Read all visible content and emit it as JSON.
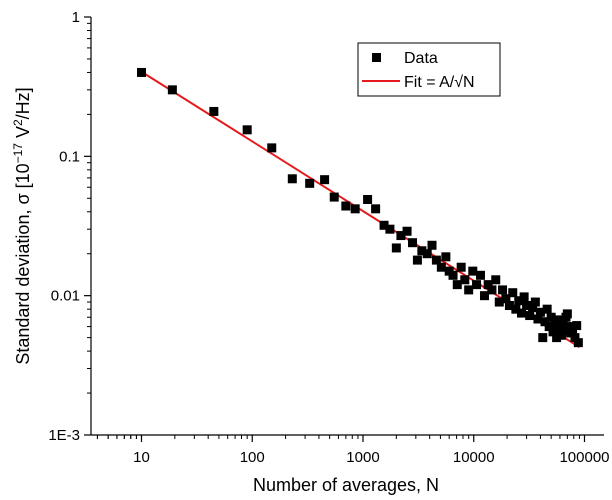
{
  "chart_data": {
    "type": "scatter",
    "title": "",
    "xlabel": "Number of averages, N",
    "ylabel": {
      "pre": "Standard deviation, σ [10",
      "sup1": "−17",
      "mid": " V",
      "sup2": "2",
      "post": "/Hz]"
    },
    "x_scale": "log",
    "y_scale": "log",
    "xlim": [
      3.5,
      150000
    ],
    "ylim": [
      0.001,
      1
    ],
    "x_ticks": [
      {
        "value": 10,
        "label": "10"
      },
      {
        "value": 100,
        "label": "100"
      },
      {
        "value": 1000,
        "label": "1000"
      },
      {
        "value": 10000,
        "label": "10000"
      },
      {
        "value": 100000,
        "label": "100000"
      }
    ],
    "y_ticks": [
      {
        "value": 0.001,
        "label": "1E-3"
      },
      {
        "value": 0.01,
        "label": "0.01"
      },
      {
        "value": 0.1,
        "label": "0.1"
      },
      {
        "value": 1,
        "label": "1"
      }
    ],
    "grid": false,
    "legend_position": "top-right",
    "series": [
      {
        "name": "Data",
        "kind": "scatter",
        "marker": "square",
        "color": "#000000",
        "points": [
          [
            10,
            0.4
          ],
          [
            19,
            0.3
          ],
          [
            45,
            0.21
          ],
          [
            90,
            0.155
          ],
          [
            150,
            0.115
          ],
          [
            230,
            0.069
          ],
          [
            330,
            0.064
          ],
          [
            450,
            0.068
          ],
          [
            550,
            0.051
          ],
          [
            700,
            0.044
          ],
          [
            850,
            0.042
          ],
          [
            1100,
            0.049
          ],
          [
            1300,
            0.042
          ],
          [
            1550,
            0.032
          ],
          [
            1750,
            0.03
          ],
          [
            2000,
            0.022
          ],
          [
            2200,
            0.027
          ],
          [
            2500,
            0.029
          ],
          [
            2800,
            0.024
          ],
          [
            3100,
            0.018
          ],
          [
            3400,
            0.021
          ],
          [
            3800,
            0.02
          ],
          [
            4200,
            0.023
          ],
          [
            4600,
            0.018
          ],
          [
            5100,
            0.016
          ],
          [
            5600,
            0.019
          ],
          [
            6000,
            0.015
          ],
          [
            6500,
            0.014
          ],
          [
            7100,
            0.012
          ],
          [
            7700,
            0.016
          ],
          [
            8300,
            0.013
          ],
          [
            9000,
            0.011
          ],
          [
            9800,
            0.015
          ],
          [
            10600,
            0.012
          ],
          [
            11500,
            0.014
          ],
          [
            12500,
            0.01
          ],
          [
            13500,
            0.012
          ],
          [
            14600,
            0.011
          ],
          [
            15800,
            0.013
          ],
          [
            17000,
            0.009
          ],
          [
            18200,
            0.011
          ],
          [
            19500,
            0.0095
          ],
          [
            21000,
            0.0085
          ],
          [
            22500,
            0.0105
          ],
          [
            24000,
            0.008
          ],
          [
            25500,
            0.0092
          ],
          [
            27000,
            0.0075
          ],
          [
            28500,
            0.0098
          ],
          [
            30000,
            0.0085
          ],
          [
            32000,
            0.0072
          ],
          [
            34000,
            0.0082
          ],
          [
            36000,
            0.009
          ],
          [
            38000,
            0.0068
          ],
          [
            40000,
            0.0076
          ],
          [
            42000,
            0.005
          ],
          [
            44000,
            0.0065
          ],
          [
            46000,
            0.008
          ],
          [
            48000,
            0.006
          ],
          [
            50000,
            0.007
          ],
          [
            52000,
            0.0055
          ],
          [
            54000,
            0.0062
          ],
          [
            56000,
            0.005
          ],
          [
            58000,
            0.0067
          ],
          [
            60000,
            0.0058
          ],
          [
            62000,
            0.0052
          ],
          [
            64000,
            0.0064
          ],
          [
            66000,
            0.0056
          ],
          [
            68000,
            0.007
          ],
          [
            70000,
            0.0074
          ],
          [
            72000,
            0.006
          ],
          [
            75000,
            0.0054
          ],
          [
            78000,
            0.0058
          ],
          [
            82000,
            0.005
          ],
          [
            85000,
            0.0061
          ],
          [
            88000,
            0.0046
          ]
        ]
      },
      {
        "name": "Fit = A/√N",
        "kind": "line",
        "color": "#e41a1c",
        "x_range": [
          10,
          90000
        ],
        "A": 1.28,
        "exponent": -0.5
      }
    ]
  }
}
